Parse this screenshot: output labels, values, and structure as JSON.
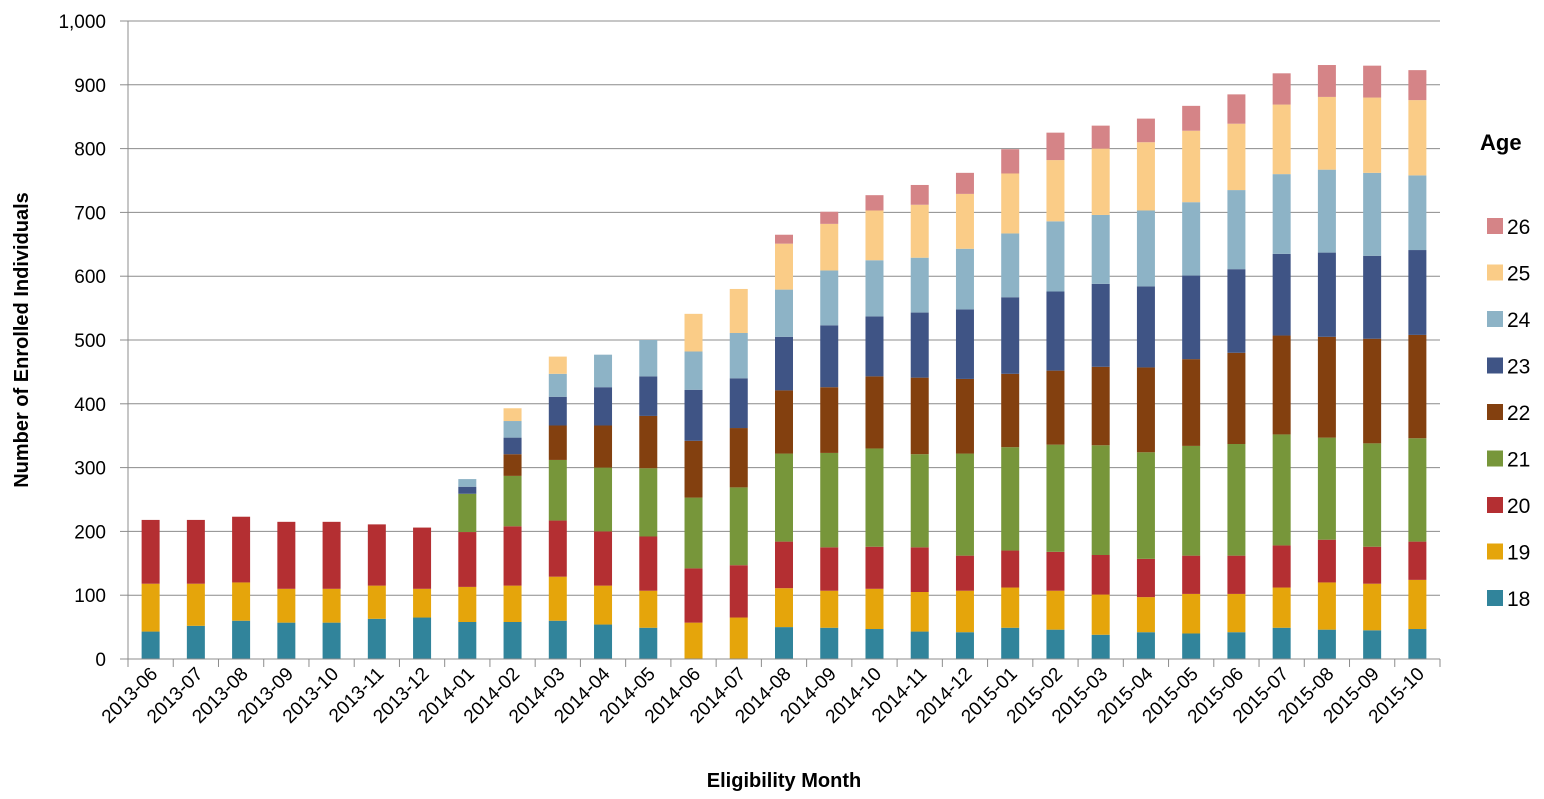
{
  "chart_data": {
    "type": "bar",
    "stacked": true,
    "xlabel": "Eligibility Month",
    "ylabel": "Number of Enrolled Individuals",
    "ylim": [
      0,
      1000
    ],
    "yticks": [
      "0",
      "100",
      "200",
      "300",
      "400",
      "500",
      "600",
      "700",
      "800",
      "900",
      "1,000"
    ],
    "grid": true,
    "legend_title": "Age",
    "legend_position": "right",
    "categories": [
      "2013-06",
      "2013-07",
      "2013-08",
      "2013-09",
      "2013-10",
      "2013-11",
      "2013-12",
      "2014-01",
      "2014-02",
      "2014-03",
      "2014-04",
      "2014-05",
      "2014-06",
      "2014-07",
      "2014-08",
      "2014-09",
      "2014-10",
      "2014-11",
      "2014-12",
      "2015-01",
      "2015-02",
      "2015-03",
      "2015-04",
      "2015-05",
      "2015-06",
      "2015-07",
      "2015-08",
      "2015-09",
      "2015-10"
    ],
    "series": [
      {
        "name": "18",
        "color": "#31849B",
        "values": [
          43,
          52,
          60,
          57,
          57,
          63,
          65,
          58,
          58,
          60,
          54,
          49,
          0,
          0,
          50,
          49,
          47,
          43,
          42,
          49,
          46,
          38,
          42,
          40,
          42,
          49,
          46,
          45,
          47
        ]
      },
      {
        "name": "19",
        "color": "#E5A50B",
        "values": [
          75,
          66,
          60,
          53,
          53,
          52,
          45,
          55,
          57,
          69,
          61,
          58,
          57,
          65,
          61,
          58,
          63,
          62,
          65,
          63,
          61,
          63,
          55,
          62,
          60,
          63,
          74,
          73,
          77
        ]
      },
      {
        "name": "20",
        "color": "#B42F32",
        "values": [
          100,
          100,
          103,
          105,
          105,
          96,
          96,
          86,
          93,
          88,
          85,
          85,
          85,
          82,
          73,
          68,
          66,
          70,
          55,
          58,
          61,
          62,
          60,
          60,
          60,
          66,
          67,
          58,
          60
        ]
      },
      {
        "name": "21",
        "color": "#77963A",
        "values": [
          0,
          0,
          0,
          0,
          0,
          0,
          0,
          60,
          79,
          95,
          100,
          107,
          111,
          122,
          138,
          148,
          154,
          146,
          160,
          162,
          168,
          172,
          167,
          172,
          175,
          174,
          160,
          162,
          162
        ]
      },
      {
        "name": "22",
        "color": "#83400F",
        "values": [
          0,
          0,
          0,
          0,
          0,
          0,
          0,
          0,
          34,
          54,
          66,
          82,
          89,
          93,
          99,
          103,
          113,
          120,
          117,
          115,
          116,
          123,
          133,
          136,
          143,
          155,
          158,
          164,
          162
        ]
      },
      {
        "name": "23",
        "color": "#3F5485",
        "values": [
          0,
          0,
          0,
          0,
          0,
          0,
          0,
          11,
          26,
          45,
          60,
          62,
          80,
          78,
          84,
          97,
          94,
          102,
          109,
          120,
          124,
          130,
          127,
          131,
          131,
          128,
          132,
          130,
          133
        ]
      },
      {
        "name": "24",
        "color": "#8DB3C6",
        "values": [
          0,
          0,
          0,
          0,
          0,
          0,
          0,
          12,
          26,
          36,
          51,
          57,
          60,
          71,
          74,
          86,
          88,
          86,
          95,
          100,
          110,
          108,
          119,
          115,
          124,
          125,
          130,
          130,
          117
        ]
      },
      {
        "name": "25",
        "color": "#FACC87",
        "values": [
          0,
          0,
          0,
          0,
          0,
          0,
          0,
          0,
          20,
          27,
          0,
          0,
          59,
          69,
          72,
          73,
          78,
          83,
          86,
          94,
          96,
          104,
          107,
          112,
          104,
          109,
          114,
          118,
          118
        ]
      },
      {
        "name": "26",
        "color": "#D58487",
        "values": [
          0,
          0,
          0,
          0,
          0,
          0,
          0,
          0,
          0,
          0,
          0,
          0,
          0,
          0,
          14,
          19,
          24,
          31,
          33,
          38,
          43,
          36,
          37,
          39,
          46,
          49,
          50,
          50,
          47
        ]
      }
    ]
  }
}
